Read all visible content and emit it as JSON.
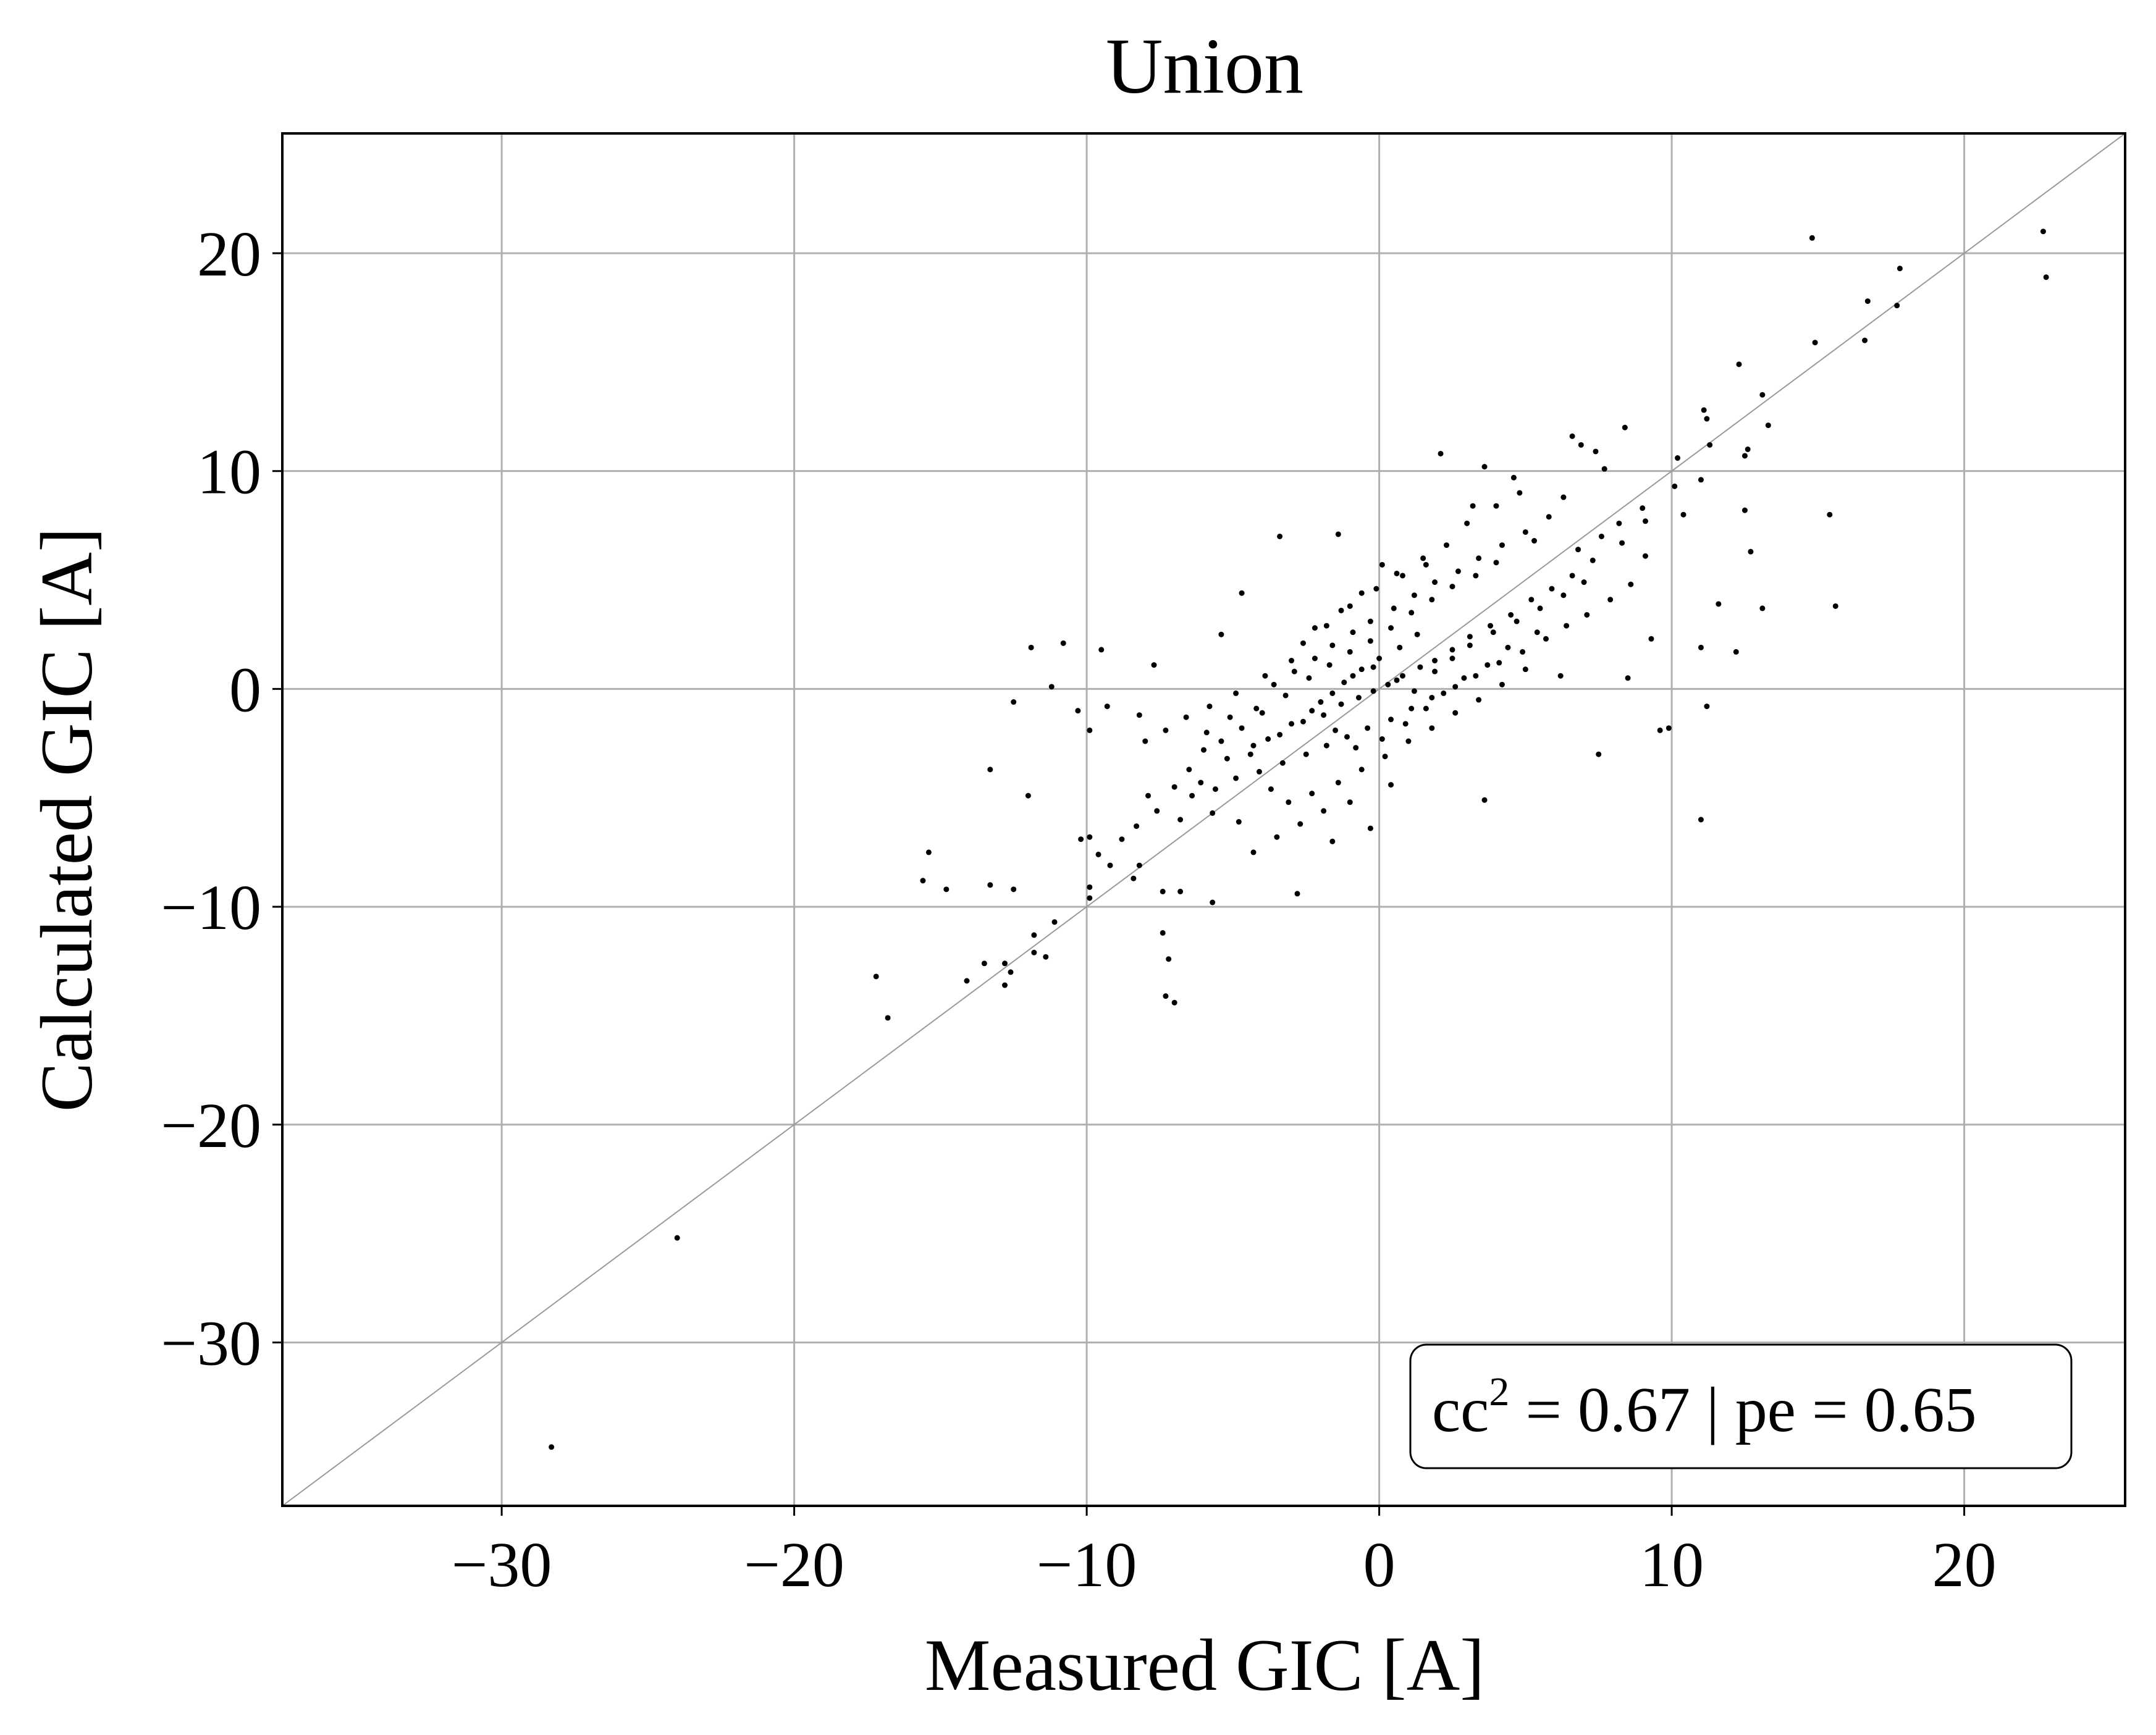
{
  "chart_data": {
    "type": "scatter",
    "title": "Union",
    "xlabel": "Measured GIC [A]",
    "ylabel": "Calculated GIC [A]",
    "xlim": [
      -37.5,
      25.5
    ],
    "ylim": [
      -37.5,
      25.5
    ],
    "xticks": [
      -30,
      -20,
      -10,
      0,
      10,
      20
    ],
    "yticks": [
      -30,
      -20,
      -10,
      0,
      10,
      20
    ],
    "xtick_labels": [
      "−30",
      "−20",
      "−10",
      "0",
      "10",
      "20"
    ],
    "ytick_labels": [
      "−30",
      "−20",
      "−10",
      "0",
      "10",
      "20"
    ],
    "grid": true,
    "reference_line": {
      "label": "y = x",
      "color": "#999999"
    },
    "annotation": {
      "text_main": "cc",
      "superscript": "2",
      "text_rest": " = 0.67 | pe = 0.65",
      "location": "bottom-right"
    },
    "point_color": "#000000",
    "series": [
      {
        "name": "Union",
        "points": [
          [
            -28.3,
            -34.8
          ],
          [
            -24.0,
            -25.2
          ],
          [
            22.7,
            21.0
          ],
          [
            22.8,
            18.9
          ],
          [
            14.8,
            20.7
          ],
          [
            17.8,
            19.3
          ],
          [
            16.7,
            17.8
          ],
          [
            17.7,
            17.6
          ],
          [
            16.6,
            16.0
          ],
          [
            14.9,
            15.9
          ],
          [
            12.3,
            14.9
          ],
          [
            13.1,
            13.5
          ],
          [
            11.1,
            12.8
          ],
          [
            11.2,
            12.4
          ],
          [
            13.3,
            12.1
          ],
          [
            11.3,
            11.2
          ],
          [
            12.6,
            11.0
          ],
          [
            12.5,
            10.7
          ],
          [
            10.2,
            10.6
          ],
          [
            8.4,
            12.0
          ],
          [
            6.6,
            11.6
          ],
          [
            6.9,
            11.2
          ],
          [
            7.4,
            10.9
          ],
          [
            2.1,
            10.8
          ],
          [
            3.6,
            10.2
          ],
          [
            7.7,
            10.1
          ],
          [
            10.1,
            9.3
          ],
          [
            11.0,
            9.6
          ],
          [
            12.5,
            8.2
          ],
          [
            15.4,
            8.0
          ],
          [
            10.4,
            8.0
          ],
          [
            9.1,
            7.7
          ],
          [
            8.3,
            6.7
          ],
          [
            9.1,
            6.1
          ],
          [
            12.7,
            6.3
          ],
          [
            11.6,
            3.9
          ],
          [
            13.1,
            3.7
          ],
          [
            15.6,
            3.8
          ],
          [
            12.2,
            1.7
          ],
          [
            11.0,
            1.9
          ],
          [
            9.3,
            2.3
          ],
          [
            11.2,
            -0.8
          ],
          [
            9.9,
            -1.8
          ],
          [
            9.6,
            -1.9
          ],
          [
            11.0,
            -6.0
          ],
          [
            7.5,
            -3.0
          ],
          [
            3.6,
            -5.1
          ],
          [
            -3.4,
            7.0
          ],
          [
            -1.4,
            7.1
          ],
          [
            0.1,
            5.7
          ],
          [
            -4.7,
            4.4
          ],
          [
            -5.4,
            2.5
          ],
          [
            -7.7,
            1.1
          ],
          [
            -9.5,
            1.8
          ],
          [
            -10.8,
            2.1
          ],
          [
            -11.9,
            1.9
          ],
          [
            -11.2,
            0.1
          ],
          [
            -12.5,
            -0.6
          ],
          [
            -10.3,
            -1.0
          ],
          [
            -9.3,
            -0.8
          ],
          [
            -9.9,
            -1.9
          ],
          [
            -8.2,
            -1.2
          ],
          [
            -12.0,
            -4.9
          ],
          [
            -13.3,
            -3.7
          ],
          [
            -9.9,
            -6.8
          ],
          [
            -10.2,
            -6.9
          ],
          [
            -9.6,
            -7.6
          ],
          [
            -9.2,
            -8.1
          ],
          [
            -8.2,
            -8.1
          ],
          [
            -8.4,
            -8.7
          ],
          [
            -7.4,
            -9.3
          ],
          [
            -6.8,
            -9.3
          ],
          [
            -9.9,
            -9.1
          ],
          [
            -11.1,
            -10.7
          ],
          [
            -11.4,
            -12.3
          ],
          [
            -12.8,
            -12.6
          ],
          [
            -12.6,
            -13.0
          ],
          [
            -13.5,
            -12.6
          ],
          [
            -12.8,
            -13.6
          ],
          [
            -14.1,
            -13.4
          ],
          [
            -15.4,
            -7.5
          ],
          [
            -15.6,
            -8.8
          ],
          [
            -14.8,
            -9.2
          ],
          [
            -13.3,
            -9.0
          ],
          [
            -12.5,
            -9.2
          ],
          [
            -11.8,
            -12.1
          ],
          [
            -11.8,
            -11.3
          ],
          [
            -9.9,
            -9.6
          ],
          [
            -17.2,
            -13.2
          ],
          [
            -16.8,
            -15.1
          ],
          [
            -7.4,
            -11.2
          ],
          [
            -7.2,
            -12.4
          ],
          [
            -7.3,
            -14.1
          ],
          [
            -7.0,
            -14.4
          ],
          [
            -5.7,
            -9.8
          ],
          [
            -2.8,
            -9.4
          ],
          [
            -4.8,
            -6.1
          ],
          [
            -5.7,
            -5.7
          ],
          [
            -6.8,
            -6.0
          ],
          [
            -7.6,
            -5.6
          ],
          [
            -8.3,
            -6.3
          ],
          [
            -8.8,
            -6.9
          ],
          [
            -7.9,
            -4.9
          ],
          [
            -6.1,
            -4.3
          ],
          [
            -5.2,
            -3.2
          ],
          [
            -4.3,
            -2.6
          ],
          [
            -3.4,
            -2.1
          ],
          [
            -2.6,
            -1.5
          ],
          [
            -1.9,
            -1.2
          ],
          [
            -1.3,
            -0.7
          ],
          [
            -0.7,
            -0.4
          ],
          [
            -0.2,
            -0.1
          ],
          [
            0.3,
            0.2
          ],
          [
            0.8,
            0.6
          ],
          [
            1.4,
            1.0
          ],
          [
            1.9,
            1.3
          ],
          [
            2.5,
            1.8
          ],
          [
            3.1,
            2.4
          ],
          [
            3.8,
            2.9
          ],
          [
            4.5,
            3.4
          ],
          [
            5.2,
            4.1
          ],
          [
            5.9,
            4.6
          ],
          [
            6.6,
            5.2
          ],
          [
            7.3,
            5.9
          ],
          [
            -5.9,
            -2.0
          ],
          [
            -5.1,
            -1.3
          ],
          [
            -4.2,
            -0.9
          ],
          [
            -3.6,
            0.2
          ],
          [
            -2.9,
            0.8
          ],
          [
            -2.2,
            1.4
          ],
          [
            -1.6,
            2.0
          ],
          [
            -0.9,
            2.6
          ],
          [
            -0.3,
            3.1
          ],
          [
            0.5,
            3.7
          ],
          [
            1.2,
            4.3
          ],
          [
            1.9,
            4.9
          ],
          [
            2.7,
            5.4
          ],
          [
            3.4,
            6.0
          ],
          [
            4.2,
            6.6
          ],
          [
            5.0,
            7.2
          ],
          [
            5.8,
            7.9
          ],
          [
            6.3,
            8.8
          ],
          [
            4.6,
            9.7
          ],
          [
            3.2,
            8.4
          ],
          [
            -4.9,
            -4.1
          ],
          [
            -4.1,
            -3.8
          ],
          [
            -3.3,
            -3.4
          ],
          [
            -2.5,
            -3.0
          ],
          [
            -1.8,
            -2.6
          ],
          [
            -1.1,
            -2.2
          ],
          [
            -0.4,
            -1.8
          ],
          [
            0.4,
            -1.4
          ],
          [
            1.1,
            -0.9
          ],
          [
            1.8,
            -0.4
          ],
          [
            2.6,
            0.1
          ],
          [
            3.3,
            0.6
          ],
          [
            4.1,
            1.2
          ],
          [
            4.9,
            1.7
          ],
          [
            5.7,
            2.3
          ],
          [
            6.4,
            2.9
          ],
          [
            7.1,
            3.4
          ],
          [
            7.9,
            4.1
          ],
          [
            8.6,
            4.8
          ],
          [
            -3.1,
            -5.2
          ],
          [
            -2.3,
            -4.8
          ],
          [
            -1.4,
            -4.3
          ],
          [
            -0.6,
            -3.7
          ],
          [
            0.2,
            -3.1
          ],
          [
            1.0,
            -2.4
          ],
          [
            1.8,
            -1.8
          ],
          [
            2.6,
            -1.1
          ],
          [
            3.4,
            -0.5
          ],
          [
            4.2,
            0.2
          ],
          [
            5.0,
            0.9
          ],
          [
            6.2,
            0.6
          ],
          [
            8.5,
            0.5
          ],
          [
            -6.5,
            -3.7
          ],
          [
            -6.0,
            -2.8
          ],
          [
            -5.4,
            -2.4
          ],
          [
            -4.7,
            -1.8
          ],
          [
            -4.0,
            -1.1
          ],
          [
            -3.2,
            -0.3
          ],
          [
            -2.4,
            0.5
          ],
          [
            -1.7,
            1.1
          ],
          [
            -1.0,
            1.7
          ],
          [
            -0.3,
            2.2
          ],
          [
            0.4,
            2.8
          ],
          [
            1.1,
            3.5
          ],
          [
            1.8,
            4.1
          ],
          [
            2.5,
            4.7
          ],
          [
            3.3,
            5.2
          ],
          [
            4.0,
            5.8
          ],
          [
            -1.2,
            0.3
          ],
          [
            -0.6,
            0.9
          ],
          [
            0.0,
            1.4
          ],
          [
            0.7,
            1.9
          ],
          [
            1.3,
            2.5
          ],
          [
            -2.0,
            -0.6
          ],
          [
            -1.5,
            -1.9
          ],
          [
            -0.8,
            -2.7
          ],
          [
            0.1,
            -2.3
          ],
          [
            0.9,
            -1.6
          ],
          [
            1.6,
            -0.9
          ],
          [
            2.2,
            -0.2
          ],
          [
            2.9,
            0.5
          ],
          [
            3.7,
            1.1
          ],
          [
            4.4,
            1.9
          ],
          [
            5.4,
            2.6
          ],
          [
            -3.8,
            -2.3
          ],
          [
            -3.0,
            -1.6
          ],
          [
            -2.3,
            -1.0
          ],
          [
            -1.6,
            -0.2
          ],
          [
            -0.9,
            0.6
          ],
          [
            -0.2,
            1.0
          ],
          [
            0.6,
            0.4
          ],
          [
            1.2,
            -0.1
          ],
          [
            1.9,
            0.8
          ],
          [
            2.5,
            1.4
          ],
          [
            3.1,
            2.0
          ],
          [
            3.9,
            2.6
          ],
          [
            4.7,
            3.1
          ],
          [
            5.5,
            3.7
          ],
          [
            6.3,
            4.3
          ],
          [
            7.0,
            4.9
          ],
          [
            -7.0,
            -4.5
          ],
          [
            -6.4,
            -4.9
          ],
          [
            -5.6,
            -4.6
          ],
          [
            -4.4,
            -3.0
          ],
          [
            -3.7,
            -4.6
          ],
          [
            -2.7,
            -6.2
          ],
          [
            -1.9,
            -5.6
          ],
          [
            -1.0,
            -5.2
          ],
          [
            0.4,
            -4.4
          ],
          [
            -0.3,
            -6.4
          ],
          [
            -1.6,
            -7.0
          ],
          [
            -3.5,
            -6.8
          ],
          [
            -4.3,
            -7.5
          ],
          [
            -2.2,
            2.8
          ],
          [
            -1.3,
            3.6
          ],
          [
            -0.6,
            4.4
          ],
          [
            0.6,
            5.3
          ],
          [
            1.5,
            6.0
          ],
          [
            2.3,
            6.6
          ],
          [
            3.0,
            7.6
          ],
          [
            4.0,
            8.4
          ],
          [
            4.8,
            9.0
          ],
          [
            5.3,
            6.8
          ],
          [
            6.8,
            6.4
          ],
          [
            7.6,
            7.0
          ],
          [
            8.2,
            7.6
          ],
          [
            9.0,
            8.3
          ],
          [
            -8.0,
            -2.4
          ],
          [
            -7.3,
            -1.9
          ],
          [
            -6.6,
            -1.3
          ],
          [
            -5.8,
            -0.8
          ],
          [
            -4.9,
            -0.2
          ],
          [
            -3.9,
            0.6
          ],
          [
            -3.0,
            1.3
          ],
          [
            -2.6,
            2.1
          ],
          [
            -1.8,
            2.9
          ],
          [
            -1.0,
            3.8
          ],
          [
            -0.1,
            4.6
          ],
          [
            0.8,
            5.2
          ],
          [
            1.6,
            5.7
          ]
        ]
      }
    ]
  }
}
